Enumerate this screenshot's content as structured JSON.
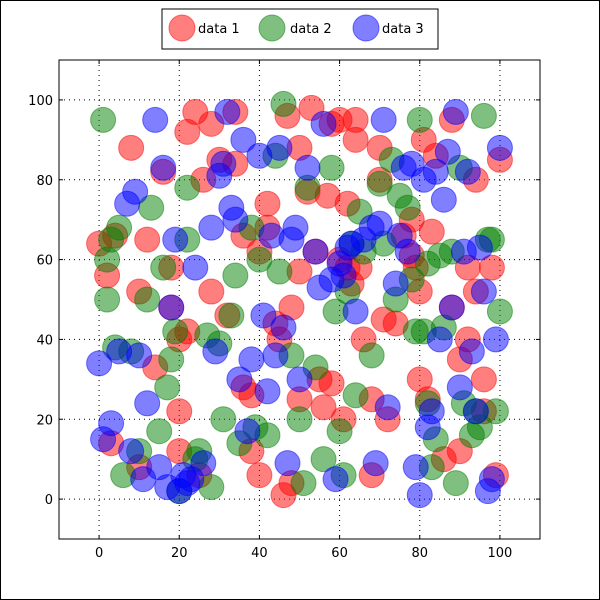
{
  "chart_data": {
    "type": "scatter",
    "xlim": [
      -10,
      110
    ],
    "ylim": [
      -10,
      110
    ],
    "xticks": [
      "0",
      "20",
      "40",
      "60",
      "80",
      "100"
    ],
    "yticks": [
      "0",
      "20",
      "40",
      "60",
      "80",
      "100"
    ],
    "grid": true,
    "legend_position": "top",
    "series": [
      {
        "name": "data 1",
        "color": "#ff0000",
        "x": [
          0,
          2,
          3,
          4,
          8,
          10,
          10,
          12,
          14,
          16,
          18,
          18,
          20,
          20,
          20,
          22,
          22,
          24,
          25,
          26,
          28,
          28,
          30,
          32,
          34,
          34,
          36,
          36,
          38,
          38,
          40,
          40,
          42,
          42,
          44,
          45,
          46,
          47,
          48,
          48,
          50,
          50,
          50,
          52,
          53,
          54,
          55,
          56,
          57,
          58,
          58,
          60,
          60,
          61,
          62,
          62,
          63,
          64,
          64,
          65,
          66,
          68,
          68,
          70,
          70,
          71,
          72,
          74,
          76,
          78,
          78,
          79,
          80,
          80,
          81,
          82,
          83,
          84,
          86,
          88,
          88,
          90,
          90,
          92,
          92,
          94,
          94,
          96,
          96,
          98,
          99,
          100
        ],
        "y": [
          64,
          56,
          14,
          66,
          88,
          52,
          8,
          65,
          33,
          82,
          58,
          48,
          22,
          12,
          40,
          92,
          42,
          97,
          6,
          80,
          52,
          94,
          85,
          46,
          97,
          84,
          66,
          28,
          12,
          26,
          6,
          62,
          74,
          68,
          44,
          40,
          1,
          96,
          48,
          4,
          88,
          25,
          57,
          77,
          98,
          62,
          30,
          23,
          76,
          29,
          94,
          60,
          95,
          20,
          74,
          58,
          54,
          90,
          95,
          58,
          40,
          25,
          6,
          80,
          88,
          45,
          20,
          44,
          66,
          70,
          61,
          58,
          52,
          30,
          90,
          25,
          67,
          86,
          10,
          95,
          48,
          35,
          12,
          40,
          58,
          80,
          52,
          30,
          22,
          58,
          6,
          85
        ]
      },
      {
        "name": "data 2",
        "color": "#008000",
        "x": [
          1,
          2,
          2,
          3,
          4,
          5,
          6,
          8,
          10,
          12,
          13,
          15,
          16,
          17,
          18,
          19,
          20,
          22,
          22,
          24,
          25,
          27,
          28,
          30,
          31,
          33,
          34,
          35,
          38,
          39,
          40,
          42,
          44,
          45,
          46,
          48,
          50,
          51,
          52,
          54,
          56,
          58,
          59,
          60,
          61,
          62,
          63,
          64,
          65,
          66,
          68,
          70,
          71,
          73,
          74,
          75,
          77,
          78,
          79,
          80,
          81,
          82,
          82,
          83,
          84,
          85,
          86,
          88,
          89,
          90,
          91,
          93,
          94,
          95,
          96,
          97,
          98,
          99,
          100
        ],
        "y": [
          95,
          60,
          50,
          65,
          38,
          68,
          6,
          37,
          12,
          50,
          73,
          17,
          58,
          28,
          35,
          42,
          2,
          65,
          78,
          10,
          12,
          41,
          3,
          39,
          20,
          46,
          56,
          14,
          68,
          18,
          60,
          16,
          86,
          57,
          99,
          36,
          20,
          4,
          78,
          33,
          10,
          83,
          47,
          17,
          6,
          52,
          64,
          26,
          72,
          62,
          36,
          79,
          64,
          85,
          50,
          76,
          73,
          55,
          42,
          95,
          42,
          59,
          24,
          8,
          15,
          61,
          43,
          62,
          4,
          83,
          24,
          16,
          22,
          18,
          96,
          65,
          65,
          22,
          47
        ]
      },
      {
        "name": "data 3",
        "color": "#0000ff",
        "x": [
          0,
          1,
          3,
          5,
          7,
          8,
          9,
          10,
          11,
          12,
          14,
          15,
          16,
          17,
          18,
          19,
          20,
          21,
          22,
          23,
          24,
          26,
          28,
          29,
          30,
          31,
          32,
          33,
          34,
          35,
          36,
          37,
          38,
          40,
          41,
          42,
          43,
          44,
          45,
          46,
          47,
          48,
          49,
          50,
          52,
          54,
          55,
          56,
          58,
          59,
          60,
          61,
          62,
          63,
          64,
          66,
          68,
          69,
          70,
          71,
          72,
          74,
          75,
          76,
          77,
          78,
          79,
          80,
          81,
          82,
          83,
          84,
          85,
          86,
          87,
          88,
          89,
          90,
          91,
          92,
          93,
          94,
          95,
          96,
          97,
          98,
          99,
          100
        ],
        "y": [
          34,
          15,
          19,
          37,
          74,
          12,
          77,
          36,
          5,
          24,
          95,
          8,
          83,
          3,
          48,
          65,
          2,
          6,
          4,
          5,
          58,
          9,
          68,
          37,
          81,
          84,
          97,
          73,
          70,
          30,
          90,
          17,
          35,
          86,
          46,
          27,
          66,
          36,
          88,
          43,
          9,
          65,
          68,
          30,
          83,
          62,
          53,
          94,
          55,
          5,
          59,
          56,
          63,
          64,
          47,
          65,
          68,
          9,
          69,
          95,
          23,
          54,
          66,
          83,
          62,
          84,
          8,
          1,
          80,
          18,
          22,
          82,
          40,
          75,
          87,
          48,
          97,
          28,
          62,
          82,
          37,
          22,
          63,
          52,
          2,
          5,
          40,
          88
        ]
      }
    ]
  }
}
